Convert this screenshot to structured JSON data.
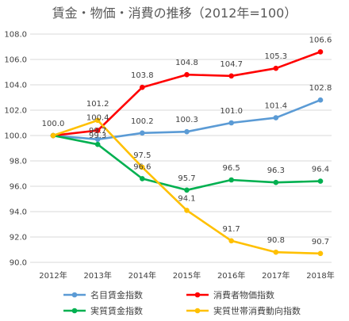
{
  "chart_data": {
    "type": "line",
    "title": "賃金・物価・消費の推移（2012年=100）",
    "categories": [
      "2012年",
      "2013年",
      "2014年",
      "2015年",
      "2016年",
      "2017年",
      "2018年"
    ],
    "ylim": [
      90.0,
      108.0
    ],
    "yticks": [
      "108.0",
      "106.0",
      "104.0",
      "102.0",
      "100.0",
      "98.0",
      "96.0",
      "94.0",
      "92.0",
      "90.0"
    ],
    "grid": true,
    "legend_position": "bottom",
    "series": [
      {
        "name": "名目賃金指数",
        "color": "#5b9bd5",
        "values": [
          100.0,
          99.7,
          100.2,
          100.3,
          101.0,
          101.4,
          102.8
        ],
        "labels": [
          "",
          "99.7",
          "100.2",
          "100.3",
          "101.0",
          "101.4",
          "102.8"
        ]
      },
      {
        "name": "消費者物価指数",
        "color": "#ff0000",
        "values": [
          100.0,
          100.4,
          103.8,
          104.8,
          104.7,
          105.3,
          106.6
        ],
        "labels": [
          "",
          "100.4",
          "103.8",
          "104.8",
          "104.7",
          "105.3",
          "106.6"
        ]
      },
      {
        "name": "実質賃金指数",
        "color": "#00b050",
        "values": [
          100.0,
          99.3,
          96.6,
          95.7,
          96.5,
          96.3,
          96.4
        ],
        "labels": [
          "",
          "99.3",
          "96.6",
          "95.7",
          "96.5",
          "96.3",
          "96.4"
        ]
      },
      {
        "name": "実質世帯消費動向指数",
        "color": "#ffc000",
        "values": [
          100.0,
          101.2,
          97.5,
          94.1,
          91.7,
          90.8,
          90.7
        ],
        "labels": [
          "100.0",
          "101.2",
          "97.5",
          "94.1",
          "91.7",
          "90.8",
          "90.7"
        ]
      }
    ]
  }
}
